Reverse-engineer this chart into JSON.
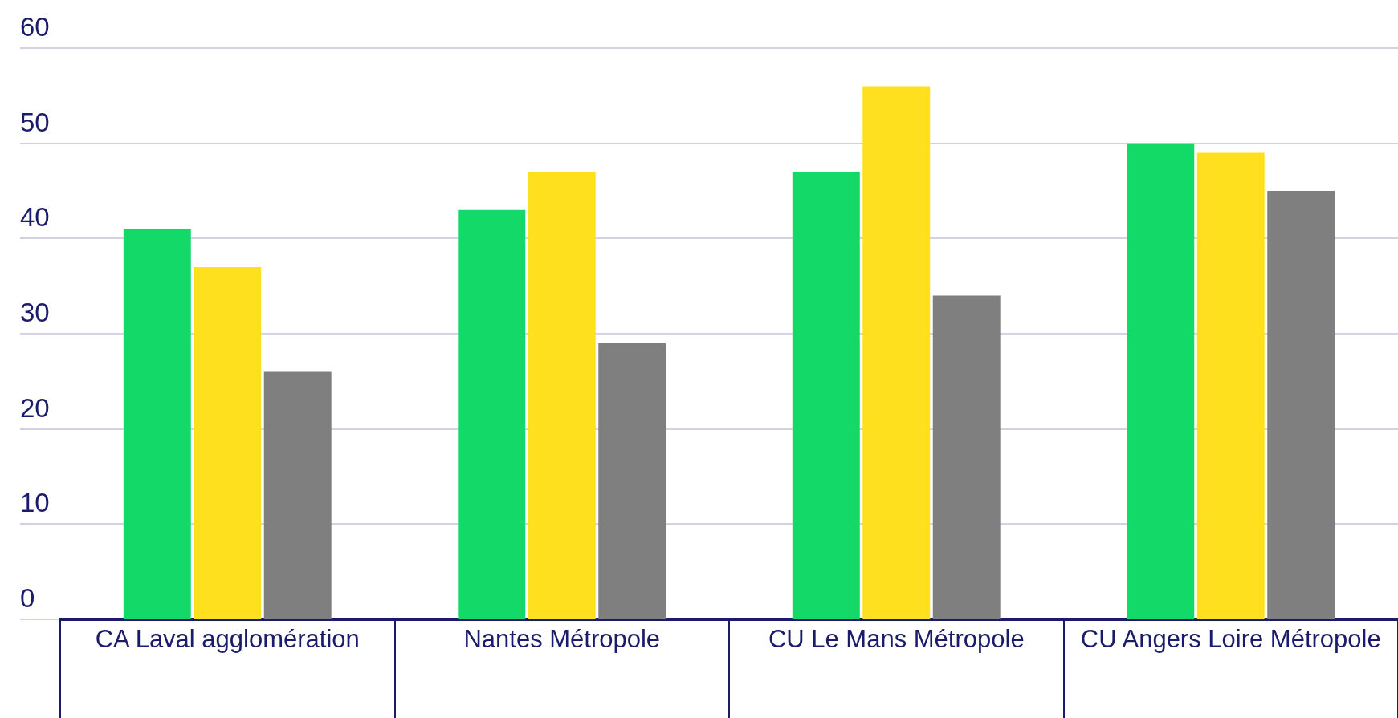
{
  "chart_data": {
    "type": "bar",
    "categories": [
      "CA Laval agglomération",
      "Nantes Métropole",
      "CU Le Mans Métropole",
      "CU Angers Loire Métropole"
    ],
    "series": [
      {
        "color": "#13d968",
        "values": [
          41,
          43,
          47,
          50
        ]
      },
      {
        "color": "#ffe01e",
        "values": [
          37,
          47,
          56,
          49
        ]
      },
      {
        "color": "#7f7f7f",
        "values": [
          26,
          29,
          34,
          45
        ]
      }
    ],
    "ylim": [
      0,
      60
    ],
    "yticks": [
      0,
      10,
      20,
      30,
      40,
      50,
      60
    ],
    "grid": "y",
    "legend": false
  }
}
